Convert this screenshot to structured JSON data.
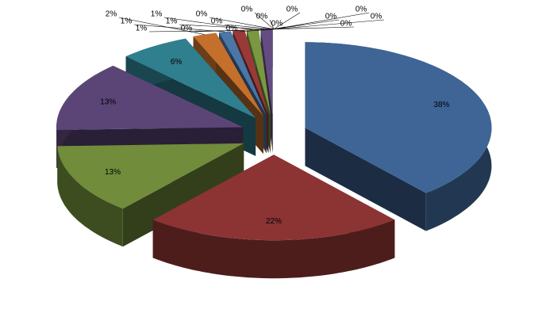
{
  "chart_data": {
    "type": "pie",
    "values": [
      38,
      22,
      13,
      13,
      6,
      2,
      1,
      1,
      1,
      1,
      0,
      0,
      0,
      0,
      0,
      0,
      0,
      0,
      0,
      0,
      0,
      0
    ],
    "value_labels": [
      "38%",
      "22%",
      "13%",
      "13%",
      "6%",
      "2%",
      "1%",
      "1%",
      "1%",
      "1%",
      "0%",
      "0%",
      "0%",
      "0%",
      "0%",
      "0%",
      "0%",
      "0%",
      "0%",
      "0%",
      "0%",
      "0%"
    ],
    "colors": [
      "#3e6595",
      "#8c3433",
      "#718c3b",
      "#5b4577",
      "#2f7f8f",
      "#c4702c",
      "#4a76a8",
      "#9a3a38",
      "#7b9840",
      "#634c82",
      "#338a9b",
      "#d07a32",
      "#5584b8",
      "#a84442",
      "#86a44a",
      "#6d568e",
      "#3c96a8",
      "#dc8540",
      "#6090c4",
      "#b54e4c",
      "#90ae54",
      "#77609a"
    ]
  }
}
